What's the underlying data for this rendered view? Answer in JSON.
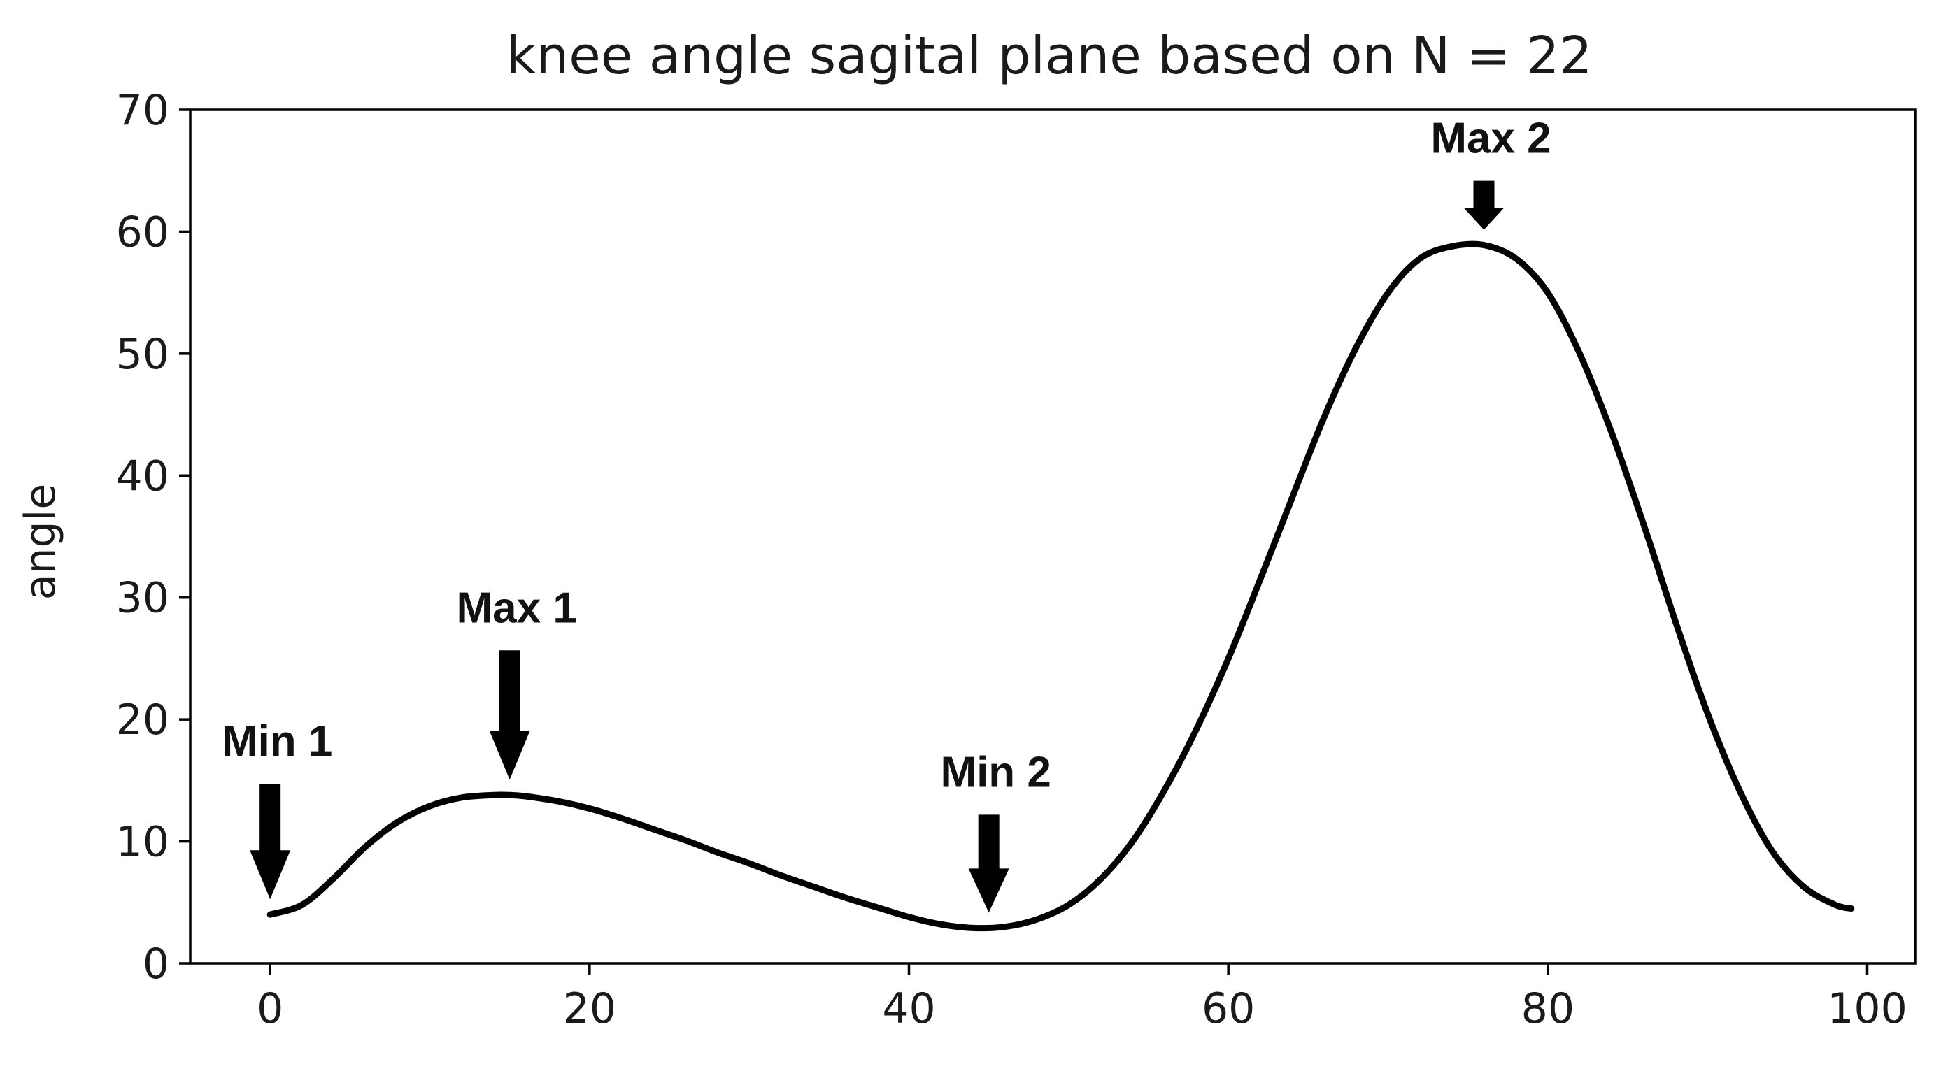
{
  "chart_data": {
    "type": "line",
    "title": "knee angle sagital plane based on N = 22",
    "xlabel": "",
    "ylabel": "angle",
    "xlim": [
      -5,
      103
    ],
    "ylim": [
      0,
      70
    ],
    "xticks": [
      0,
      20,
      40,
      60,
      80,
      100
    ],
    "yticks": [
      0,
      10,
      20,
      30,
      40,
      50,
      60,
      70
    ],
    "grid": false,
    "line_color": "#000000",
    "series": [
      {
        "x": [
          0,
          2,
          4,
          6,
          8,
          10,
          12,
          14,
          15,
          16,
          18,
          20,
          22,
          24,
          26,
          28,
          30,
          32,
          34,
          36,
          38,
          40,
          42,
          44,
          46,
          48,
          50,
          52,
          54,
          56,
          58,
          60,
          62,
          64,
          66,
          68,
          70,
          72,
          74,
          76,
          78,
          80,
          82,
          84,
          86,
          88,
          90,
          92,
          94,
          96,
          98,
          99
        ],
        "y": [
          4.0,
          4.8,
          7.0,
          9.6,
          11.6,
          12.9,
          13.6,
          13.8,
          13.8,
          13.7,
          13.3,
          12.7,
          11.9,
          11.0,
          10.1,
          9.1,
          8.2,
          7.2,
          6.3,
          5.4,
          4.6,
          3.8,
          3.2,
          2.9,
          3.0,
          3.6,
          4.8,
          6.9,
          10.0,
          14.2,
          19.2,
          25.0,
          31.5,
          38.2,
          44.8,
          50.5,
          55.0,
          57.8,
          58.8,
          58.9,
          57.8,
          55.0,
          50.0,
          43.5,
          36.0,
          28.0,
          20.5,
          14.2,
          9.3,
          6.3,
          4.8,
          4.5
        ]
      }
    ],
    "annotations": [
      {
        "text": "Min 1",
        "x": 0,
        "y": 4
      },
      {
        "text": "Max 1",
        "x": 15,
        "y": 13.8
      },
      {
        "text": "Min 2",
        "x": 45,
        "y": 2.9
      },
      {
        "text": "Max 2",
        "x": 76,
        "y": 58.9
      }
    ]
  }
}
